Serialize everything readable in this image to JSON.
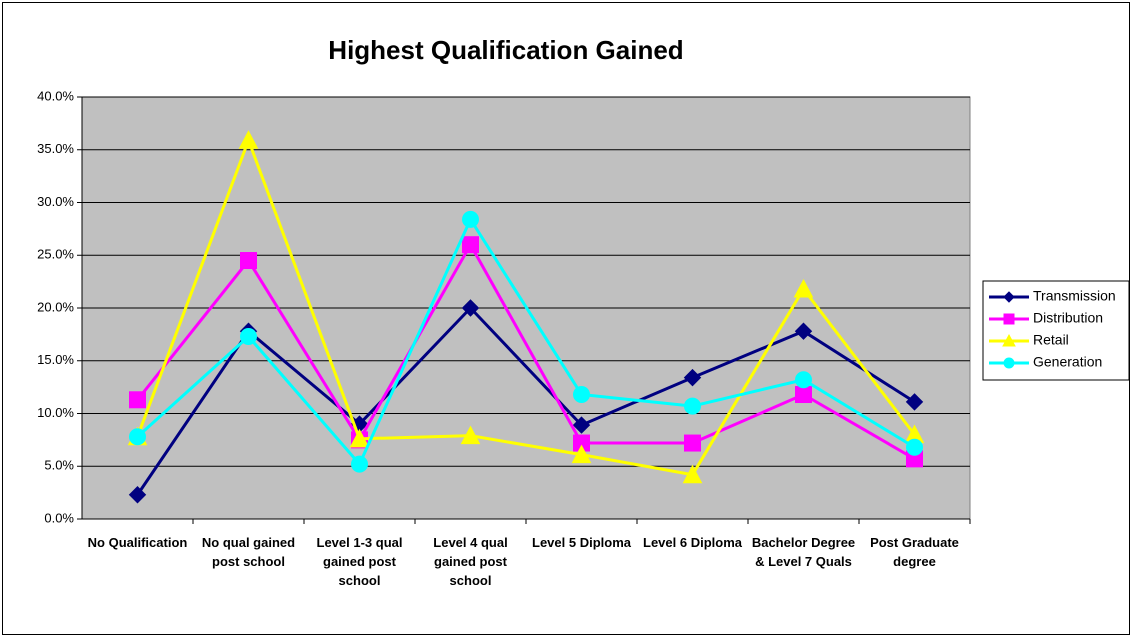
{
  "chart_data": {
    "type": "line",
    "title": "Highest Qualification Gained",
    "categories": [
      "No Qualification",
      "No qual gained post school",
      "Level 1-3 qual gained post school",
      "Level 4 qual gained post school",
      "Level 5 Diploma",
      "Level 6 Diploma",
      "Bachelor Degree & Level 7 Quals",
      "Post Graduate degree"
    ],
    "series": [
      {
        "name": "Transmission",
        "color": "#000080",
        "marker": "diamond",
        "values": [
          2.3,
          17.8,
          9.0,
          20.0,
          8.9,
          13.4,
          17.8,
          11.1
        ]
      },
      {
        "name": "Distribution",
        "color": "#ff00ff",
        "marker": "square",
        "values": [
          11.3,
          24.5,
          7.5,
          26.0,
          7.2,
          7.2,
          11.8,
          5.7
        ]
      },
      {
        "name": "Retail",
        "color": "#ffff00",
        "marker": "triangle",
        "values": [
          7.8,
          35.9,
          7.6,
          7.9,
          6.1,
          4.2,
          21.8,
          8.0
        ]
      },
      {
        "name": "Generation",
        "color": "#00ffff",
        "marker": "circle",
        "values": [
          7.8,
          17.3,
          5.2,
          28.4,
          11.8,
          10.7,
          13.2,
          6.8
        ]
      }
    ],
    "ylim": [
      0,
      40
    ],
    "yticks": [
      {
        "value": 0,
        "label": "0.0%"
      },
      {
        "value": 5,
        "label": "5.0%"
      },
      {
        "value": 10,
        "label": "10.0%"
      },
      {
        "value": 15,
        "label": "15.0%"
      },
      {
        "value": 20,
        "label": "20.0%"
      },
      {
        "value": 25,
        "label": "25.0%"
      },
      {
        "value": 30,
        "label": "30.0%"
      },
      {
        "value": 35,
        "label": "35.0%"
      },
      {
        "value": 40,
        "label": "40.0%"
      }
    ],
    "grid": true,
    "legend": "right"
  }
}
